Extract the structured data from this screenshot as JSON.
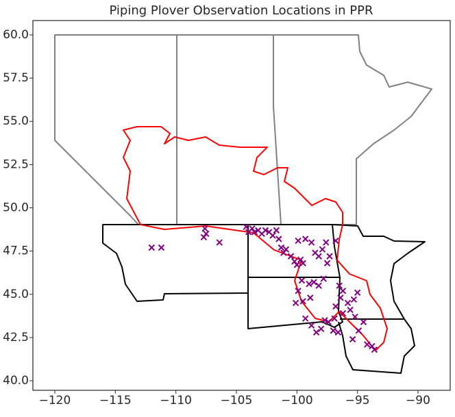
{
  "chart_data": {
    "type": "scatter",
    "title": "Piping Plover Observation Locations in PPR",
    "color": "#800080",
    "x": [
      -112.0,
      -111.2,
      -107.6,
      -107.5,
      -107.7,
      -106.4,
      -104.2,
      -104.0,
      -103.7,
      -103.5,
      -103.2,
      -102.9,
      -102.6,
      -102.3,
      -102.0,
      -101.7,
      -101.5,
      -101.3,
      -101.1,
      -100.9,
      -100.5,
      -100.2,
      -100.0,
      -99.7,
      -99.5,
      -99.9,
      -99.3,
      -98.8,
      -98.5,
      -98.2,
      -97.9,
      -97.6,
      -97.3,
      -96.8,
      -97.5,
      -99.6,
      -99.0,
      -98.6,
      -98.2,
      -97.8,
      -99.9,
      -99.5,
      -98.9,
      -100.1,
      -96.5,
      -96.2,
      -96.4,
      -95.8,
      -96.8,
      -96.9,
      -97.4,
      -98.0,
      -98.4,
      -97.0,
      -96.6,
      -96.2,
      -95.6,
      -95.3,
      -95.0,
      -95.2,
      -94.5,
      -94.9,
      -95.4,
      -94.2,
      -93.6,
      -93.8,
      -99.3,
      -98.8,
      -97.7
    ],
    "y": [
      47.7,
      47.7,
      48.8,
      48.5,
      48.3,
      48.0,
      48.9,
      48.6,
      48.8,
      48.6,
      48.7,
      48.5,
      48.7,
      48.6,
      48.4,
      48.7,
      48.2,
      47.7,
      47.4,
      47.6,
      47.2,
      46.9,
      46.7,
      47.0,
      46.8,
      48.1,
      48.2,
      48.0,
      47.4,
      47.2,
      47.6,
      48.0,
      47.2,
      48.1,
      46.8,
      45.8,
      45.6,
      45.7,
      45.5,
      45.9,
      45.2,
      44.6,
      44.8,
      44.5,
      45.5,
      45.2,
      44.8,
      44.5,
      44.3,
      43.6,
      43.4,
      43.0,
      42.8,
      42.9,
      42.8,
      43.9,
      44.1,
      44.7,
      45.1,
      43.7,
      43.4,
      42.9,
      42.4,
      42.1,
      41.8,
      42.0,
      43.6,
      43.2,
      43.5
    ],
    "xlim": [
      -121.81,
      -87.34
    ],
    "ylim": [
      39.45,
      60.83
    ],
    "xticks": [
      {
        "value": -120,
        "label": "−120"
      },
      {
        "value": -115,
        "label": "−115"
      },
      {
        "value": -110,
        "label": "−110"
      },
      {
        "value": -105,
        "label": "−105"
      },
      {
        "value": -100,
        "label": "−100"
      },
      {
        "value": -95,
        "label": "−95"
      },
      {
        "value": -90,
        "label": "−90"
      }
    ],
    "yticks": [
      {
        "value": 40,
        "label": "40.0"
      },
      42.5,
      {
        "value": 45,
        "label": "45.0"
      },
      47.5,
      {
        "value": 50,
        "label": "50.0"
      },
      52.5,
      {
        "value": 55,
        "label": "55.0"
      },
      57.5,
      {
        "value": 60,
        "label": "60.0"
      }
    ]
  }
}
